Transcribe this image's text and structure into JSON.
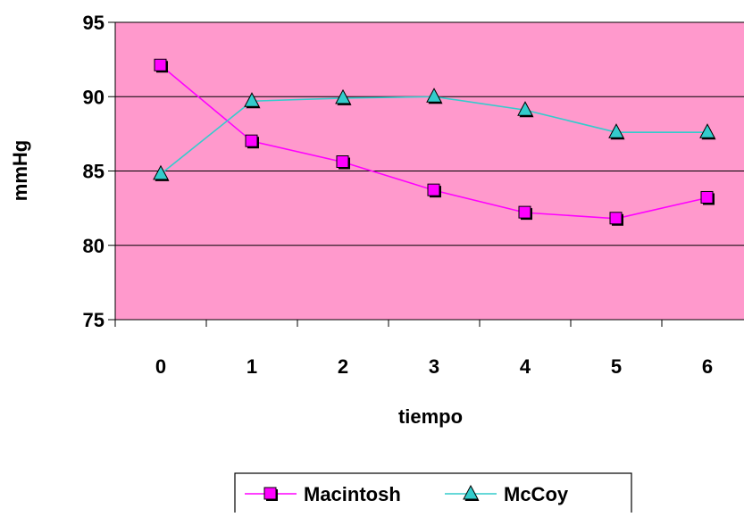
{
  "chart_data": {
    "type": "line",
    "xlabel": "tiempo",
    "ylabel": "mmHg",
    "categories": [
      "0",
      "1",
      "2",
      "3",
      "4",
      "5",
      "6"
    ],
    "ylim": [
      75,
      95
    ],
    "yticks": [
      "75",
      "80",
      "85",
      "90",
      "95"
    ],
    "grid": true,
    "plot_background": "#ff99cc",
    "legend_position": "bottom",
    "series": [
      {
        "name": "Macintosh",
        "values": [
          92.1,
          87.0,
          85.6,
          83.7,
          82.2,
          81.8,
          83.2
        ],
        "color": "#ff00ff",
        "marker": "square"
      },
      {
        "name": "McCoy",
        "values": [
          84.8,
          89.7,
          89.9,
          90.0,
          89.1,
          87.6,
          87.6
        ],
        "color": "#33cccc",
        "marker": "triangle"
      }
    ]
  }
}
